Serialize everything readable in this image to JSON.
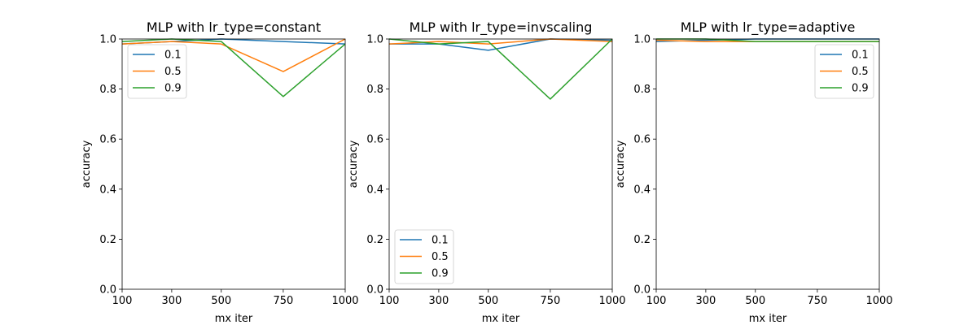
{
  "chart_data": [
    {
      "type": "line",
      "title": "MLP with lr_type=constant",
      "xlabel": "mx iter",
      "ylabel": "accuracy",
      "x": [
        100,
        300,
        500,
        750,
        1000
      ],
      "xticks": [
        "100",
        "300",
        "500",
        "750",
        "1000"
      ],
      "yticks": [
        "0.0",
        "0.2",
        "0.4",
        "0.6",
        "0.8",
        "1.0"
      ],
      "ylim": [
        0,
        1
      ],
      "legend": "upper left",
      "series": [
        {
          "name": "0.1",
          "color": "#1f77b4",
          "values": [
            0.98,
            0.99,
            1.0,
            0.99,
            0.98
          ]
        },
        {
          "name": "0.5",
          "color": "#ff7f0e",
          "values": [
            0.98,
            0.99,
            0.98,
            0.87,
            1.0
          ]
        },
        {
          "name": "0.9",
          "color": "#2ca02c",
          "values": [
            0.99,
            1.0,
            0.99,
            0.77,
            0.98
          ]
        }
      ]
    },
    {
      "type": "line",
      "title": "MLP with lr_type=invscaling",
      "xlabel": "mx iter",
      "ylabel": "accuracy",
      "x": [
        100,
        300,
        500,
        750,
        1000
      ],
      "xticks": [
        "100",
        "300",
        "500",
        "750",
        "1000"
      ],
      "yticks": [
        "0.0",
        "0.2",
        "0.4",
        "0.6",
        "0.8",
        "1.0"
      ],
      "ylim": [
        0,
        1
      ],
      "legend": "lower left",
      "series": [
        {
          "name": "0.1",
          "color": "#1f77b4",
          "values": [
            0.98,
            0.98,
            0.955,
            1.0,
            0.995
          ]
        },
        {
          "name": "0.5",
          "color": "#ff7f0e",
          "values": [
            0.98,
            0.99,
            0.98,
            1.0,
            0.99
          ]
        },
        {
          "name": "0.9",
          "color": "#2ca02c",
          "values": [
            1.0,
            0.98,
            0.99,
            0.76,
            1.0
          ]
        }
      ]
    },
    {
      "type": "line",
      "title": "MLP with lr_type=adaptive",
      "xlabel": "mx iter",
      "ylabel": "accuracy",
      "x": [
        100,
        300,
        500,
        750,
        1000
      ],
      "xticks": [
        "100",
        "300",
        "500",
        "750",
        "1000"
      ],
      "yticks": [
        "0.0",
        "0.2",
        "0.4",
        "0.6",
        "0.8",
        "1.0"
      ],
      "ylim": [
        0,
        1
      ],
      "legend": "upper right",
      "series": [
        {
          "name": "0.1",
          "color": "#1f77b4",
          "values": [
            0.99,
            0.995,
            1.0,
            1.0,
            1.0
          ]
        },
        {
          "name": "0.5",
          "color": "#ff7f0e",
          "values": [
            0.995,
            0.99,
            0.99,
            0.99,
            0.99
          ]
        },
        {
          "name": "0.9",
          "color": "#2ca02c",
          "values": [
            1.0,
            1.0,
            0.99,
            0.99,
            0.99
          ]
        }
      ]
    }
  ]
}
